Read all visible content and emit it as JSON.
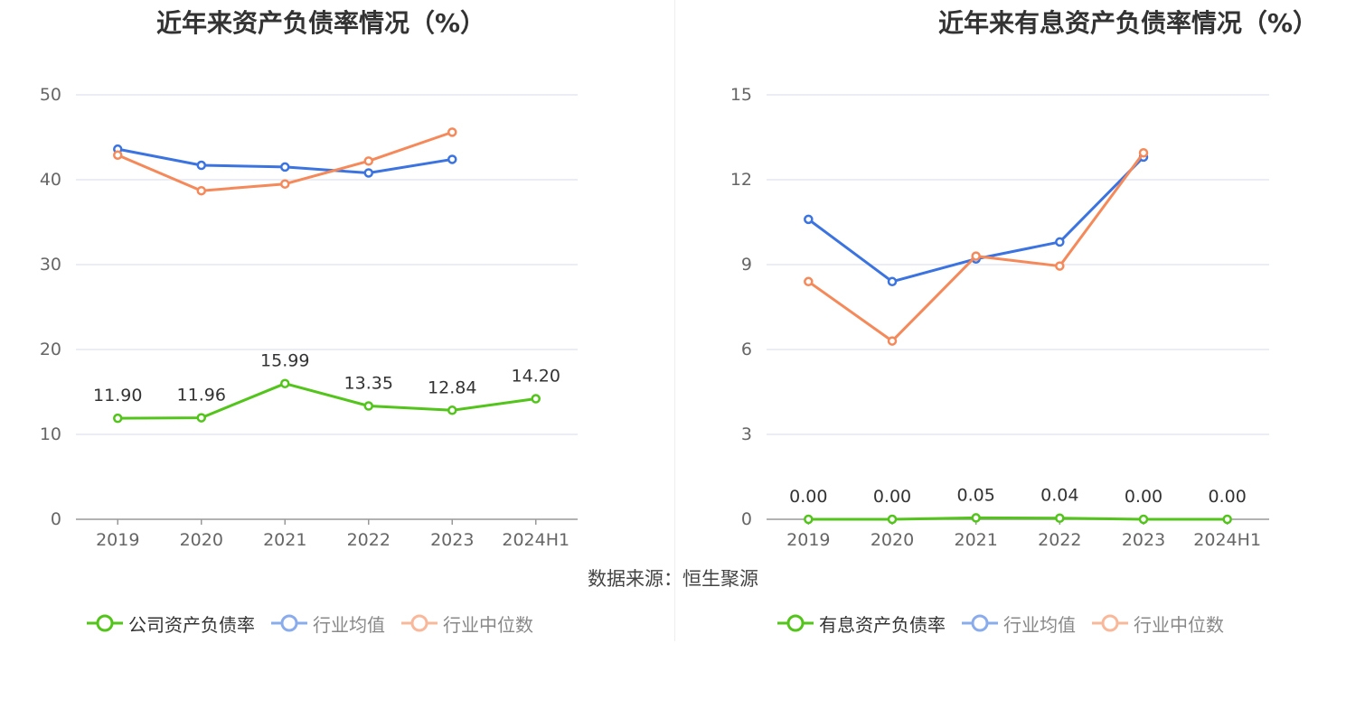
{
  "source_label": "数据来源：恒生聚源",
  "colors": {
    "company": "#52c41a",
    "avg": "#3b73e0",
    "median": "#f5895a",
    "grid": "#e6e6f0",
    "axis": "#999999"
  },
  "chart_data": [
    {
      "type": "line",
      "title": "近年来资产负债率情况（%）",
      "categories": [
        "2019",
        "2020",
        "2021",
        "2022",
        "2023",
        "2024H1"
      ],
      "ylim": [
        0,
        50
      ],
      "yticks": [
        "0",
        "10",
        "20",
        "30",
        "40",
        "50"
      ],
      "yticks_values": [
        0,
        10,
        20,
        30,
        40,
        50
      ],
      "series": [
        {
          "name": "公司资产负债率",
          "values": [
            11.9,
            11.96,
            15.99,
            13.35,
            12.84,
            14.2
          ],
          "labels": [
            "11.90",
            "11.96",
            "15.99",
            "13.35",
            "12.84",
            "14.20"
          ]
        },
        {
          "name": "行业均值",
          "values": [
            43.6,
            41.7,
            41.5,
            40.8,
            42.4,
            null
          ]
        },
        {
          "name": "行业中位数",
          "values": [
            42.9,
            38.7,
            39.5,
            42.2,
            45.6,
            null
          ]
        }
      ]
    },
    {
      "type": "line",
      "title": "近年来有息资产负债率情况（%）",
      "categories": [
        "2019",
        "2020",
        "2021",
        "2022",
        "2023",
        "2024H1"
      ],
      "ylim": [
        0,
        15
      ],
      "yticks": [
        "0",
        "3",
        "6",
        "9",
        "12",
        "15"
      ],
      "yticks_values": [
        0,
        3,
        6,
        9,
        12,
        15
      ],
      "series": [
        {
          "name": "有息资产负债率",
          "values": [
            0.0,
            0.0,
            0.05,
            0.04,
            0.0,
            0.0
          ],
          "labels": [
            "0.00",
            "0.00",
            "0.05",
            "0.04",
            "0.00",
            "0.00"
          ]
        },
        {
          "name": "行业均值",
          "values": [
            10.6,
            8.4,
            9.2,
            9.8,
            12.8,
            null
          ]
        },
        {
          "name": "行业中位数",
          "values": [
            8.4,
            6.3,
            9.3,
            8.95,
            12.95,
            null
          ]
        }
      ]
    }
  ]
}
